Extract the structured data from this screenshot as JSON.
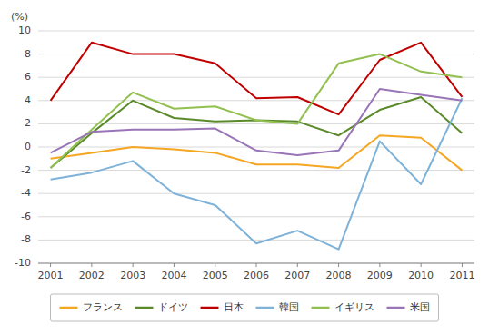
{
  "chart_data": {
    "type": "line",
    "y_label": "(%)",
    "x": [
      2001,
      2002,
      2003,
      2004,
      2005,
      2006,
      2007,
      2008,
      2009,
      2010,
      2011
    ],
    "xlim": [
      2000.7,
      2011.3
    ],
    "xticks": [
      2001,
      2002,
      2003,
      2004,
      2005,
      2006,
      2007,
      2008,
      2009,
      2010,
      2011
    ],
    "ylim": [
      -10,
      10
    ],
    "yticks": [
      -10,
      -8,
      -6,
      -4,
      -2,
      0,
      2,
      4,
      6,
      8,
      10
    ],
    "grid": true,
    "legend": "bottom",
    "series": [
      {
        "name": "フランス",
        "color": "#f5a623",
        "values": [
          -1.0,
          -0.5,
          0.0,
          -0.2,
          -0.5,
          -1.5,
          -1.5,
          -1.8,
          1.0,
          0.8,
          -2.0
        ]
      },
      {
        "name": "ドイツ",
        "color": "#5a8a2a",
        "values": [
          -1.8,
          1.2,
          4.0,
          2.5,
          2.2,
          2.3,
          2.2,
          1.0,
          3.2,
          4.3,
          1.2
        ]
      },
      {
        "name": "日本",
        "color": "#c00000",
        "values": [
          4.0,
          9.0,
          8.0,
          8.0,
          7.2,
          4.2,
          4.3,
          2.8,
          7.5,
          9.0,
          4.3
        ]
      },
      {
        "name": "韓国",
        "color": "#7eb2d8",
        "values": [
          -2.8,
          -2.2,
          -1.2,
          -4.0,
          -5.0,
          -8.3,
          -7.2,
          -8.8,
          0.5,
          -3.2,
          4.2
        ]
      },
      {
        "name": "イギリス",
        "color": "#92c050",
        "values": [
          -1.8,
          1.5,
          4.7,
          3.3,
          3.5,
          2.3,
          2.0,
          7.2,
          8.0,
          6.5,
          6.0
        ]
      },
      {
        "name": "米国",
        "color": "#9975b8",
        "values": [
          -0.5,
          1.3,
          1.5,
          1.5,
          1.6,
          -0.3,
          -0.7,
          -0.3,
          5.0,
          4.5,
          4.0
        ]
      }
    ]
  }
}
